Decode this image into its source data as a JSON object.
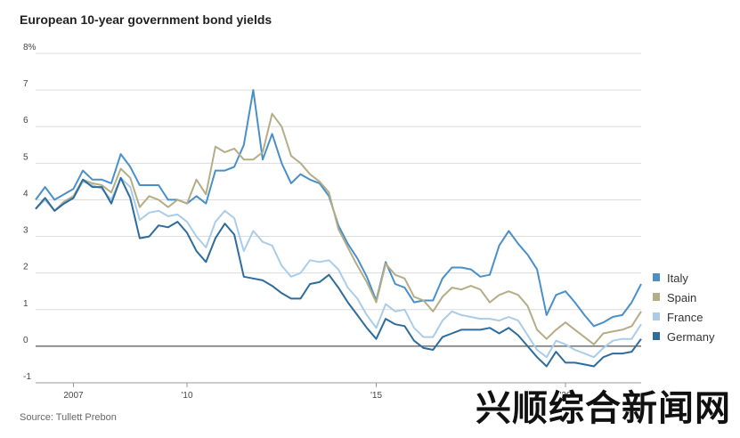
{
  "chart_data": {
    "type": "line",
    "title": "European 10-year government bond yields",
    "source": "Source: Tullett Prebon",
    "xlabel": "",
    "ylabel": "",
    "ylim": [
      -1,
      8
    ],
    "y_ticks": [
      {
        "value": 8,
        "label": "8%"
      },
      {
        "value": 7,
        "label": "7"
      },
      {
        "value": 6,
        "label": "6"
      },
      {
        "value": 5,
        "label": "5"
      },
      {
        "value": 4,
        "label": "4"
      },
      {
        "value": 3,
        "label": "3"
      },
      {
        "value": 2,
        "label": "2"
      },
      {
        "value": 1,
        "label": "1"
      },
      {
        "value": 0,
        "label": "0"
      },
      {
        "value": -1,
        "label": "-1"
      }
    ],
    "xlim": [
      2006.0,
      2022.0
    ],
    "x_ticks": [
      {
        "value": 2007,
        "label": "2007"
      },
      {
        "value": 2010,
        "label": "'10"
      },
      {
        "value": 2015,
        "label": "'15"
      },
      {
        "value": 2020,
        "label": "'20"
      }
    ],
    "x": [
      2006.0,
      2006.25,
      2006.5,
      2006.75,
      2007.0,
      2007.25,
      2007.5,
      2007.75,
      2008.0,
      2008.25,
      2008.5,
      2008.75,
      2009.0,
      2009.25,
      2009.5,
      2009.75,
      2010.0,
      2010.25,
      2010.5,
      2010.75,
      2011.0,
      2011.25,
      2011.5,
      2011.75,
      2012.0,
      2012.25,
      2012.5,
      2012.75,
      2013.0,
      2013.25,
      2013.5,
      2013.75,
      2014.0,
      2014.25,
      2014.5,
      2014.75,
      2015.0,
      2015.25,
      2015.5,
      2015.75,
      2016.0,
      2016.25,
      2016.5,
      2016.75,
      2017.0,
      2017.25,
      2017.5,
      2017.75,
      2018.0,
      2018.25,
      2018.5,
      2018.75,
      2019.0,
      2019.25,
      2019.5,
      2019.75,
      2020.0,
      2020.25,
      2020.5,
      2020.75,
      2021.0,
      2021.25,
      2021.5,
      2021.75,
      2022.0
    ],
    "series": [
      {
        "name": "Italy",
        "color": "#4a90c8",
        "values": [
          4.0,
          4.35,
          4.0,
          4.15,
          4.3,
          4.8,
          4.55,
          4.55,
          4.45,
          5.25,
          4.9,
          4.4,
          4.4,
          4.4,
          4.0,
          4.0,
          3.9,
          4.1,
          3.9,
          4.8,
          4.8,
          4.9,
          5.5,
          7.0,
          5.1,
          5.8,
          5.0,
          4.45,
          4.7,
          4.55,
          4.45,
          4.1,
          3.3,
          2.8,
          2.4,
          1.9,
          1.25,
          2.3,
          1.7,
          1.6,
          1.2,
          1.25,
          1.25,
          1.85,
          2.15,
          2.15,
          2.1,
          1.9,
          1.95,
          2.75,
          3.15,
          2.8,
          2.5,
          2.1,
          0.85,
          1.4,
          1.5,
          1.2,
          0.85,
          0.55,
          0.65,
          0.8,
          0.85,
          1.2,
          1.7
        ]
      },
      {
        "name": "Spain",
        "color": "#b5ad86",
        "values": [
          3.75,
          4.05,
          3.7,
          3.95,
          4.1,
          4.55,
          4.45,
          4.4,
          4.2,
          4.85,
          4.6,
          3.8,
          4.1,
          4.0,
          3.8,
          4.0,
          3.9,
          4.55,
          4.15,
          5.45,
          5.3,
          5.4,
          5.1,
          5.1,
          5.3,
          6.35,
          6.0,
          5.2,
          5.0,
          4.7,
          4.5,
          4.2,
          3.2,
          2.7,
          2.2,
          1.75,
          1.2,
          2.25,
          1.95,
          1.85,
          1.35,
          1.25,
          0.95,
          1.35,
          1.6,
          1.55,
          1.65,
          1.55,
          1.2,
          1.4,
          1.5,
          1.4,
          1.1,
          0.45,
          0.2,
          0.45,
          0.65,
          0.45,
          0.25,
          0.05,
          0.35,
          0.4,
          0.45,
          0.55,
          0.95
        ]
      },
      {
        "name": "France",
        "color": "#a9cde8",
        "values": [
          3.75,
          4.0,
          3.7,
          3.9,
          4.05,
          4.5,
          4.4,
          4.3,
          4.0,
          4.6,
          4.35,
          3.45,
          3.65,
          3.7,
          3.55,
          3.6,
          3.4,
          3.0,
          2.7,
          3.4,
          3.7,
          3.5,
          2.6,
          3.15,
          2.85,
          2.75,
          2.2,
          1.9,
          2.0,
          2.35,
          2.3,
          2.35,
          2.1,
          1.6,
          1.3,
          0.85,
          0.5,
          1.15,
          0.95,
          1.0,
          0.5,
          0.25,
          0.25,
          0.7,
          0.95,
          0.85,
          0.8,
          0.75,
          0.75,
          0.7,
          0.8,
          0.7,
          0.3,
          -0.1,
          -0.3,
          0.15,
          0.05,
          -0.1,
          -0.2,
          -0.3,
          -0.05,
          0.15,
          0.2,
          0.2,
          0.6
        ]
      },
      {
        "name": "Germany",
        "color": "#2e6c9c",
        "values": [
          3.75,
          4.05,
          3.7,
          3.9,
          4.05,
          4.55,
          4.35,
          4.35,
          3.9,
          4.6,
          4.05,
          2.95,
          3.0,
          3.3,
          3.25,
          3.4,
          3.1,
          2.6,
          2.3,
          2.95,
          3.35,
          3.05,
          1.9,
          1.85,
          1.8,
          1.65,
          1.45,
          1.3,
          1.3,
          1.7,
          1.75,
          1.95,
          1.6,
          1.2,
          0.85,
          0.5,
          0.2,
          0.75,
          0.6,
          0.55,
          0.15,
          -0.05,
          -0.1,
          0.25,
          0.35,
          0.45,
          0.45,
          0.45,
          0.5,
          0.35,
          0.5,
          0.3,
          0.0,
          -0.3,
          -0.55,
          -0.15,
          -0.45,
          -0.45,
          -0.5,
          -0.55,
          -0.3,
          -0.2,
          -0.2,
          -0.15,
          0.2
        ]
      }
    ],
    "legend_position": "right",
    "grid": true,
    "watermark": "兴顺综合新闻网"
  }
}
